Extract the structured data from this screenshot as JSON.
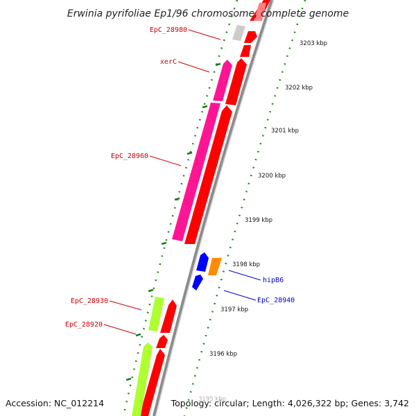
{
  "title": "Erwinia pyrifoliae Ep1/96 chromosome, complete genome",
  "accession": "Accession: NC_012214",
  "topology": "Topology: circular; Length: 4,026,322 bp; Genes: 3,742",
  "colors": {
    "backbone": "#8c8c8c",
    "cds": "#ff0000",
    "gene_pink": "#ff1493",
    "gene_green": "#adff2f",
    "gene_gray": "#cccccc",
    "gene_blue": "#0000ff",
    "gene_orange": "#ff8c00",
    "label_red": "#cc0000",
    "label_blue": "#0000cc",
    "tick_green": "#006400"
  },
  "ticks": [
    {
      "label": "3203 kbp"
    },
    {
      "label": "3202 kbp"
    },
    {
      "label": "3201 kbp"
    },
    {
      "label": "3200 kbp"
    },
    {
      "label": "3199 kbp"
    },
    {
      "label": "3198 kbp"
    },
    {
      "label": "3197 kbp"
    },
    {
      "label": "3196 kbp"
    },
    {
      "label": "3195 kbp"
    }
  ],
  "gene_labels": [
    {
      "text": "EpC_28980",
      "color": "#cc0000"
    },
    {
      "text": "xerC",
      "color": "#cc0000"
    },
    {
      "text": "EpC_28960",
      "color": "#cc0000"
    },
    {
      "text": "hipB6",
      "color": "#0000cc"
    },
    {
      "text": "EpC_28940",
      "color": "#0000cc"
    },
    {
      "text": "EpC_28930",
      "color": "#cc0000"
    },
    {
      "text": "EpC_28920",
      "color": "#cc0000"
    }
  ]
}
